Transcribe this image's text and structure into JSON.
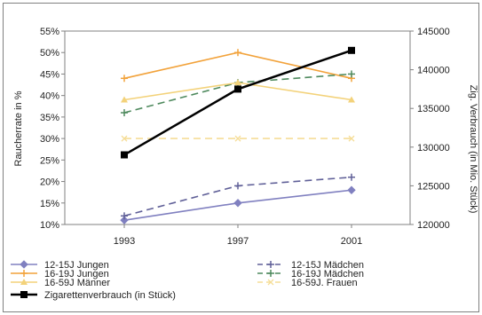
{
  "chart_data": {
    "type": "line",
    "categories": [
      "1993",
      "1997",
      "2001"
    ],
    "ylabel": "Raucherrate in %",
    "y2label": "Zig. Verbrauch (in Mio. Stück)",
    "ylim": [
      10,
      55
    ],
    "y_ticks": [
      "10%",
      "15%",
      "20%",
      "25%",
      "30%",
      "35%",
      "40%",
      "45%",
      "50%",
      "55%"
    ],
    "y2lim": [
      120000,
      145000
    ],
    "y2_ticks": [
      "120000",
      "125000",
      "130000",
      "135000",
      "140000",
      "145000"
    ],
    "grid": false,
    "legend_position": "bottom",
    "series": [
      {
        "name": "12-15J Jungen",
        "axis": "left",
        "values": [
          11,
          15,
          18
        ],
        "color": "#8080c0",
        "dash": "solid",
        "marker": "diamond"
      },
      {
        "name": "12-15J Mädchen",
        "axis": "left",
        "values": [
          12,
          19,
          21
        ],
        "color": "#606098",
        "dash": "dashed",
        "marker": "plus"
      },
      {
        "name": "16-19J Jungen",
        "axis": "left",
        "values": [
          44,
          50,
          44
        ],
        "color": "#f2a23a",
        "dash": "solid",
        "marker": "plus"
      },
      {
        "name": "16-19J Mädchen",
        "axis": "left",
        "values": [
          36,
          43,
          45
        ],
        "color": "#4f8a5e",
        "dash": "dashed",
        "marker": "plus"
      },
      {
        "name": "16-59J Männer",
        "axis": "left",
        "values": [
          39,
          43,
          39
        ],
        "color": "#f3d27a",
        "dash": "solid",
        "marker": "triangle"
      },
      {
        "name": "16-59J. Frauen",
        "axis": "left",
        "values": [
          30,
          30,
          30
        ],
        "color": "#f5dd98",
        "dash": "dashed",
        "marker": "x"
      },
      {
        "name": "Zigarettenverbrauch (in Stück)",
        "axis": "right",
        "values": [
          129000,
          137500,
          142500
        ],
        "color": "#000000",
        "dash": "solid",
        "marker": "square"
      }
    ]
  }
}
